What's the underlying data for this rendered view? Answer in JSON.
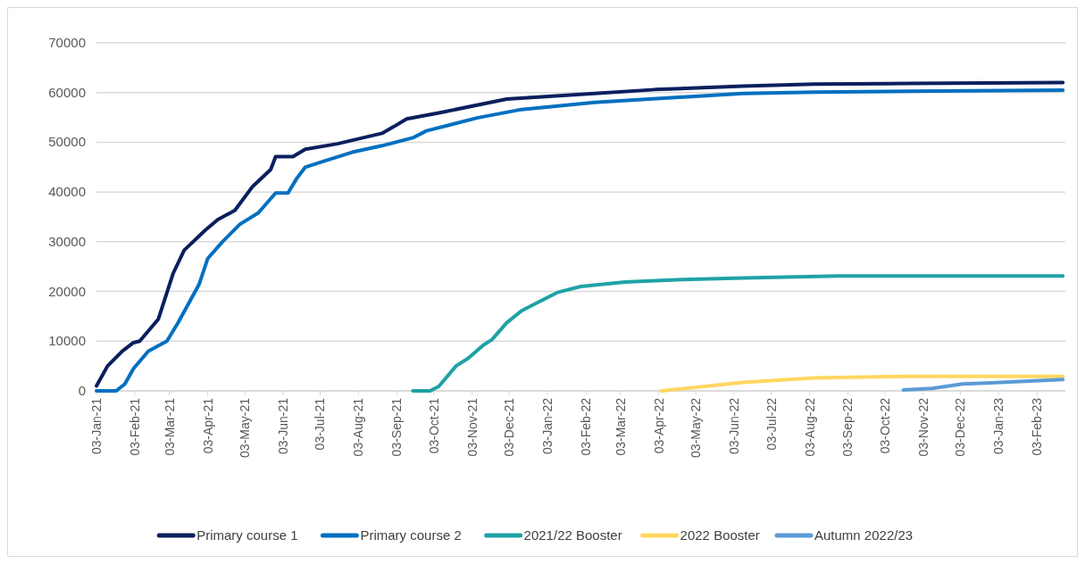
{
  "chart_data": {
    "type": "line",
    "xlim": [
      "2021-01-03",
      "2023-02-26"
    ],
    "xticks": [
      {
        "value": "2021-01-03",
        "label": "03-Jan-21"
      },
      {
        "value": "2021-02-03",
        "label": "03-Feb-21"
      },
      {
        "value": "2021-03-03",
        "label": "03-Mar-21"
      },
      {
        "value": "2021-04-03",
        "label": "03-Apr-21"
      },
      {
        "value": "2021-05-03",
        "label": "03-May-21"
      },
      {
        "value": "2021-06-03",
        "label": "03-Jun-21"
      },
      {
        "value": "2021-07-03",
        "label": "03-Jul-21"
      },
      {
        "value": "2021-08-03",
        "label": "03-Aug-21"
      },
      {
        "value": "2021-09-03",
        "label": "03-Sep-21"
      },
      {
        "value": "2021-10-03",
        "label": "03-Oct-21"
      },
      {
        "value": "2021-11-03",
        "label": "03-Nov-21"
      },
      {
        "value": "2021-12-03",
        "label": "03-Dec-21"
      },
      {
        "value": "2022-01-03",
        "label": "03-Jan-22"
      },
      {
        "value": "2022-02-03",
        "label": "03-Feb-22"
      },
      {
        "value": "2022-03-03",
        "label": "03-Mar-22"
      },
      {
        "value": "2022-04-03",
        "label": "03-Apr-22"
      },
      {
        "value": "2022-05-03",
        "label": "03-May-22"
      },
      {
        "value": "2022-06-03",
        "label": "03-Jun-22"
      },
      {
        "value": "2022-07-03",
        "label": "03-Jul-22"
      },
      {
        "value": "2022-08-03",
        "label": "03-Aug-22"
      },
      {
        "value": "2022-09-03",
        "label": "03-Sep-22"
      },
      {
        "value": "2022-10-03",
        "label": "03-Oct-22"
      },
      {
        "value": "2022-11-03",
        "label": "03-Nov-22"
      },
      {
        "value": "2022-12-03",
        "label": "03-Dec-22"
      },
      {
        "value": "2023-01-03",
        "label": "03-Jan-23"
      },
      {
        "value": "2023-02-03",
        "label": "03-Feb-23"
      }
    ],
    "ylim": [
      0,
      70000
    ],
    "yticks": [
      0,
      10000,
      20000,
      30000,
      40000,
      50000,
      60000,
      70000
    ],
    "grid": "y",
    "legend": "bottom",
    "marker": "none",
    "line_style": "solid",
    "series": [
      {
        "name": "Primary course 1",
        "color": "#0b1f5e",
        "x": [
          "2021-01-03",
          "2021-01-12",
          "2021-01-24",
          "2021-02-02",
          "2021-02-07",
          "2021-02-22",
          "2021-03-06",
          "2021-03-15",
          "2021-04-01",
          "2021-04-11",
          "2021-04-25",
          "2021-05-09",
          "2021-05-24",
          "2021-05-28",
          "2021-06-11",
          "2021-06-21",
          "2021-07-17",
          "2021-08-22",
          "2021-09-01",
          "2021-09-11",
          "2021-10-09",
          "2021-12-01",
          "2022-02-10",
          "2022-03-31",
          "2022-06-10",
          "2022-08-07",
          "2022-10-03",
          "2023-02-24"
        ],
        "values": [
          1000,
          5000,
          8000,
          9700,
          10000,
          14400,
          23600,
          28300,
          32300,
          34400,
          36300,
          41000,
          44500,
          47100,
          47100,
          48600,
          49700,
          51800,
          53200,
          54700,
          56000,
          58700,
          59800,
          60600,
          61300,
          61700,
          61800,
          62000
        ]
      },
      {
        "name": "Primary course 2",
        "color": "#0070c0",
        "x": [
          "2021-01-03",
          "2021-01-19",
          "2021-01-26",
          "2021-02-02",
          "2021-02-14",
          "2021-03-01",
          "2021-03-10",
          "2021-03-27",
          "2021-04-03",
          "2021-04-15",
          "2021-04-29",
          "2021-05-14",
          "2021-05-28",
          "2021-06-07",
          "2021-06-14",
          "2021-06-21",
          "2021-07-06",
          "2021-07-29",
          "2021-08-22",
          "2021-09-16",
          "2021-09-27",
          "2021-11-07",
          "2021-12-13",
          "2022-02-10",
          "2022-04-23",
          "2022-06-10",
          "2022-08-07",
          "2023-02-24"
        ],
        "values": [
          0,
          0,
          1400,
          4500,
          8000,
          10000,
          13700,
          21400,
          26600,
          30000,
          33500,
          35800,
          39800,
          39800,
          42700,
          45000,
          46200,
          48000,
          49300,
          50900,
          52300,
          54900,
          56600,
          58000,
          59100,
          59800,
          60100,
          60500
        ]
      },
      {
        "name": "2021/22 Booster",
        "color": "#1fa2a6",
        "x": [
          "2021-09-16",
          "2021-09-30",
          "2021-10-07",
          "2021-10-21",
          "2021-10-31",
          "2021-11-12",
          "2021-11-19",
          "2021-12-01",
          "2021-12-13",
          "2021-12-27",
          "2022-01-11",
          "2022-01-30",
          "2022-03-07",
          "2022-04-23",
          "2022-06-10",
          "2022-08-26",
          "2023-02-24"
        ],
        "values": [
          0,
          0,
          900,
          5000,
          6600,
          9200,
          10300,
          13700,
          16100,
          17900,
          19800,
          21000,
          21900,
          22400,
          22700,
          23100,
          23100
        ]
      },
      {
        "name": "2022 Booster",
        "color": "#ffd760",
        "x": [
          "2022-04-05",
          "2022-05-10",
          "2022-06-10",
          "2022-08-07",
          "2022-10-18",
          "2023-02-24"
        ],
        "values": [
          0,
          900,
          1700,
          2600,
          2900,
          2900
        ]
      },
      {
        "name": "Autumn 2022/23",
        "color": "#5b9bd5",
        "x": [
          "2022-10-18",
          "2022-11-10",
          "2022-12-05",
          "2022-12-28",
          "2023-02-24"
        ],
        "values": [
          200,
          500,
          1400,
          1600,
          2300
        ]
      }
    ]
  }
}
